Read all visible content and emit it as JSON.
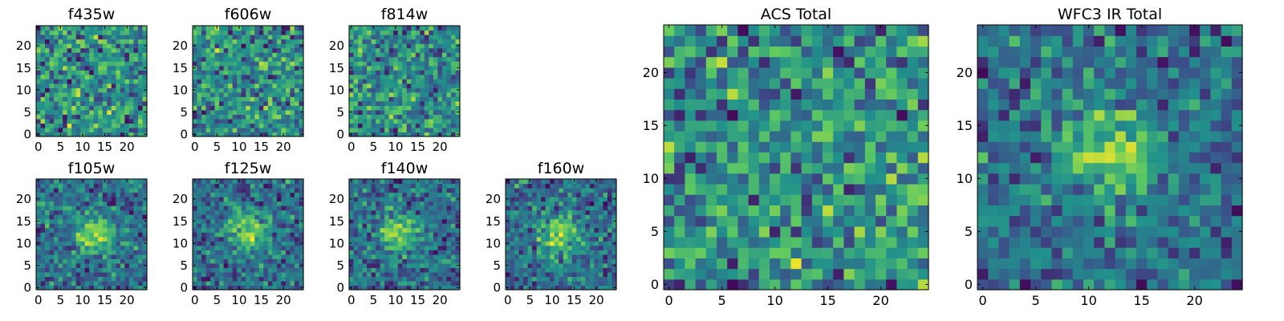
{
  "colormap": [
    "#440154",
    "#3b528b",
    "#21918c",
    "#5ec962",
    "#fde725"
  ],
  "chart_data": [
    {
      "type": "heatmap",
      "title": "f435w",
      "xlim": [
        -0.5,
        24.5
      ],
      "ylim": [
        -0.5,
        24.5
      ],
      "xticks": [
        "0",
        "5",
        "10",
        "15",
        "20"
      ],
      "yticks": [
        "0",
        "5",
        "10",
        "15",
        "20"
      ],
      "grid": false,
      "colorscale": "viridis",
      "pattern": "noise",
      "cols": 25,
      "rows": 25,
      "seed": 11
    },
    {
      "type": "heatmap",
      "title": "f606w",
      "xlim": [
        -0.5,
        24.5
      ],
      "ylim": [
        -0.5,
        24.5
      ],
      "xticks": [
        "0",
        "5",
        "10",
        "15",
        "20"
      ],
      "yticks": [
        "0",
        "5",
        "10",
        "15",
        "20"
      ],
      "grid": false,
      "colorscale": "viridis",
      "pattern": "noise",
      "cols": 25,
      "rows": 25,
      "seed": 23
    },
    {
      "type": "heatmap",
      "title": "f814w",
      "xlim": [
        -0.5,
        24.5
      ],
      "ylim": [
        -0.5,
        24.5
      ],
      "xticks": [
        "0",
        "5",
        "10",
        "15",
        "20"
      ],
      "yticks": [
        "0",
        "5",
        "10",
        "15",
        "20"
      ],
      "grid": false,
      "colorscale": "viridis",
      "pattern": "noise",
      "cols": 25,
      "rows": 25,
      "seed": 37
    },
    {
      "type": "heatmap",
      "title": "f105w",
      "xlim": [
        -0.5,
        24.5
      ],
      "ylim": [
        -0.5,
        24.5
      ],
      "xticks": [
        "0",
        "5",
        "10",
        "15",
        "20"
      ],
      "yticks": [
        "0",
        "5",
        "10",
        "15",
        "20"
      ],
      "grid": false,
      "colorscale": "viridis",
      "pattern": "central source",
      "cols": 25,
      "rows": 25,
      "seed": 41,
      "source_center": [
        13,
        12
      ]
    },
    {
      "type": "heatmap",
      "title": "f125w",
      "xlim": [
        -0.5,
        24.5
      ],
      "ylim": [
        -0.5,
        24.5
      ],
      "xticks": [
        "0",
        "5",
        "10",
        "15",
        "20"
      ],
      "yticks": [
        "0",
        "5",
        "10",
        "15",
        "20"
      ],
      "grid": false,
      "colorscale": "viridis",
      "pattern": "central source",
      "cols": 25,
      "rows": 25,
      "seed": 53,
      "source_center": [
        12,
        13
      ]
    },
    {
      "type": "heatmap",
      "title": "f140w",
      "xlim": [
        -0.5,
        24.5
      ],
      "ylim": [
        -0.5,
        24.5
      ],
      "xticks": [
        "0",
        "5",
        "10",
        "15",
        "20"
      ],
      "yticks": [
        "0",
        "5",
        "10",
        "15",
        "20"
      ],
      "grid": false,
      "colorscale": "viridis",
      "pattern": "central source",
      "cols": 25,
      "rows": 25,
      "seed": 67,
      "source_center": [
        11,
        12
      ]
    },
    {
      "type": "heatmap",
      "title": "f160w",
      "xlim": [
        -0.5,
        24.5
      ],
      "ylim": [
        -0.5,
        24.5
      ],
      "xticks": [
        "0",
        "5",
        "10",
        "15",
        "20"
      ],
      "yticks": [
        "0",
        "5",
        "10",
        "15",
        "20"
      ],
      "grid": false,
      "colorscale": "viridis",
      "pattern": "central source",
      "cols": 25,
      "rows": 25,
      "seed": 79,
      "source_center": [
        12,
        12
      ]
    },
    {
      "type": "heatmap",
      "title": "ACS Total",
      "xlim": [
        -0.5,
        24.5
      ],
      "ylim": [
        -0.5,
        24.5
      ],
      "xticks": [
        "0",
        "5",
        "10",
        "15",
        "20"
      ],
      "yticks": [
        "0",
        "5",
        "10",
        "15",
        "20"
      ],
      "grid": false,
      "colorscale": "viridis",
      "pattern": "noise",
      "cols": 25,
      "rows": 25,
      "seed": 97
    },
    {
      "type": "heatmap",
      "title": "WFC3 IR Total",
      "xlim": [
        -0.5,
        24.5
      ],
      "ylim": [
        -0.5,
        24.5
      ],
      "xticks": [
        "0",
        "5",
        "10",
        "15",
        "20"
      ],
      "yticks": [
        "0",
        "5",
        "10",
        "15",
        "20"
      ],
      "grid": false,
      "colorscale": "viridis",
      "pattern": "central source",
      "cols": 25,
      "rows": 25,
      "seed": 113,
      "source_center": [
        12,
        13
      ]
    }
  ]
}
